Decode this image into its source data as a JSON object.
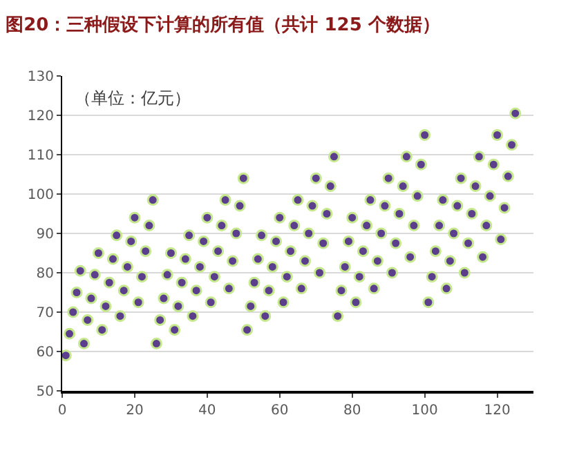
{
  "chart_data": {
    "type": "scatter",
    "title": "图20：三种假设下计算的所有值（共计 125 个数据）",
    "annotations": [
      "（单位：亿元）"
    ],
    "x": [
      1,
      2,
      3,
      4,
      5,
      6,
      7,
      8,
      9,
      10,
      11,
      12,
      13,
      14,
      15,
      16,
      17,
      18,
      19,
      20,
      21,
      22,
      23,
      24,
      25,
      26,
      27,
      28,
      29,
      30,
      31,
      32,
      33,
      34,
      35,
      36,
      37,
      38,
      39,
      40,
      41,
      42,
      43,
      44,
      45,
      46,
      47,
      48,
      49,
      50,
      51,
      52,
      53,
      54,
      55,
      56,
      57,
      58,
      59,
      60,
      61,
      62,
      63,
      64,
      65,
      66,
      67,
      68,
      69,
      70,
      71,
      72,
      73,
      74,
      75,
      76,
      77,
      78,
      79,
      80,
      81,
      82,
      83,
      84,
      85,
      86,
      87,
      88,
      89,
      90,
      91,
      92,
      93,
      94,
      95,
      96,
      97,
      98,
      99,
      100,
      101,
      102,
      103,
      104,
      105,
      106,
      107,
      108,
      109,
      110,
      111,
      112,
      113,
      114,
      115,
      116,
      117,
      118,
      119,
      120,
      121,
      122,
      123,
      124,
      125
    ],
    "series": [
      {
        "color": "#5b3f8c",
        "values": [
          59,
          64.5,
          70,
          75,
          80.5,
          62,
          68,
          73.5,
          79.5,
          85,
          65.5,
          71.5,
          77.5,
          83.5,
          89.5,
          69,
          75.5,
          81.5,
          88,
          94,
          72.5,
          79,
          85.5,
          92,
          98.5,
          62,
          68,
          73.5,
          79.5,
          85,
          65.5,
          71.5,
          77.5,
          83.5,
          89.5,
          69,
          75.5,
          81.5,
          88,
          94,
          72.5,
          79,
          85.5,
          92,
          98.5,
          76,
          83,
          90,
          97,
          104,
          65.5,
          71.5,
          77.5,
          83.5,
          89.5,
          69,
          75.5,
          81.5,
          88,
          94,
          72.5,
          79,
          85.5,
          92,
          98.5,
          76,
          83,
          90,
          97,
          104,
          80,
          87.5,
          95,
          102,
          109.5,
          69,
          75.5,
          81.5,
          88,
          94,
          72.5,
          79,
          85.5,
          92,
          98.5,
          76,
          83,
          90,
          97,
          104,
          80,
          87.5,
          95,
          102,
          109.5,
          84,
          92,
          99.5,
          107.5,
          115,
          72.5,
          79,
          85.5,
          92,
          98.5,
          76,
          83,
          90,
          97,
          104,
          80,
          87.5,
          95,
          102,
          109.5,
          84,
          92,
          99.5,
          107.5,
          115,
          88.5,
          96.5,
          104.5,
          112.5,
          120.5
        ]
      }
    ],
    "marker": "circle",
    "grid": "y",
    "xlim": [
      0,
      130
    ],
    "xticks": [
      0,
      20,
      40,
      60,
      80,
      100,
      120
    ],
    "ylim": [
      50,
      130
    ],
    "yticks": [
      50,
      60,
      70,
      80,
      90,
      100,
      110,
      120,
      130
    ]
  }
}
